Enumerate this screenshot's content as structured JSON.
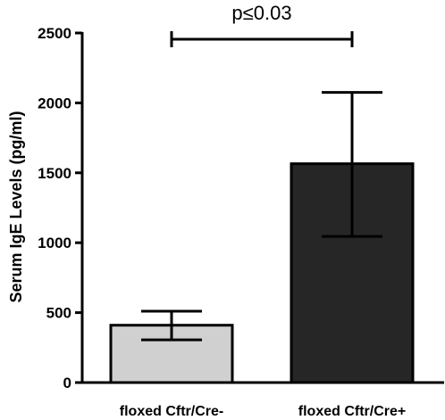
{
  "chart_data": {
    "type": "bar",
    "categories": [
      "floxed Cftr/Cre-",
      "floxed Cftr/Cre+"
    ],
    "values": [
      410,
      1565
    ],
    "errors": [
      {
        "low": 305,
        "high": 510
      },
      {
        "low": 1045,
        "high": 2075
      }
    ],
    "bar_colors": [
      "#d0d0d0",
      "#262626"
    ],
    "title": "",
    "xlabel": "",
    "ylabel": "Serum IgE Levels (pg/ml)",
    "ylim": [
      0,
      2500
    ],
    "yticks": [
      0,
      500,
      1000,
      1500,
      2000,
      2500
    ],
    "ytick_labels": [
      "0",
      "500",
      "1000",
      "1500",
      "2000",
      "2500"
    ],
    "grid": false,
    "annotation": {
      "text": "p≤0.03",
      "from": 0,
      "to": 1
    }
  }
}
